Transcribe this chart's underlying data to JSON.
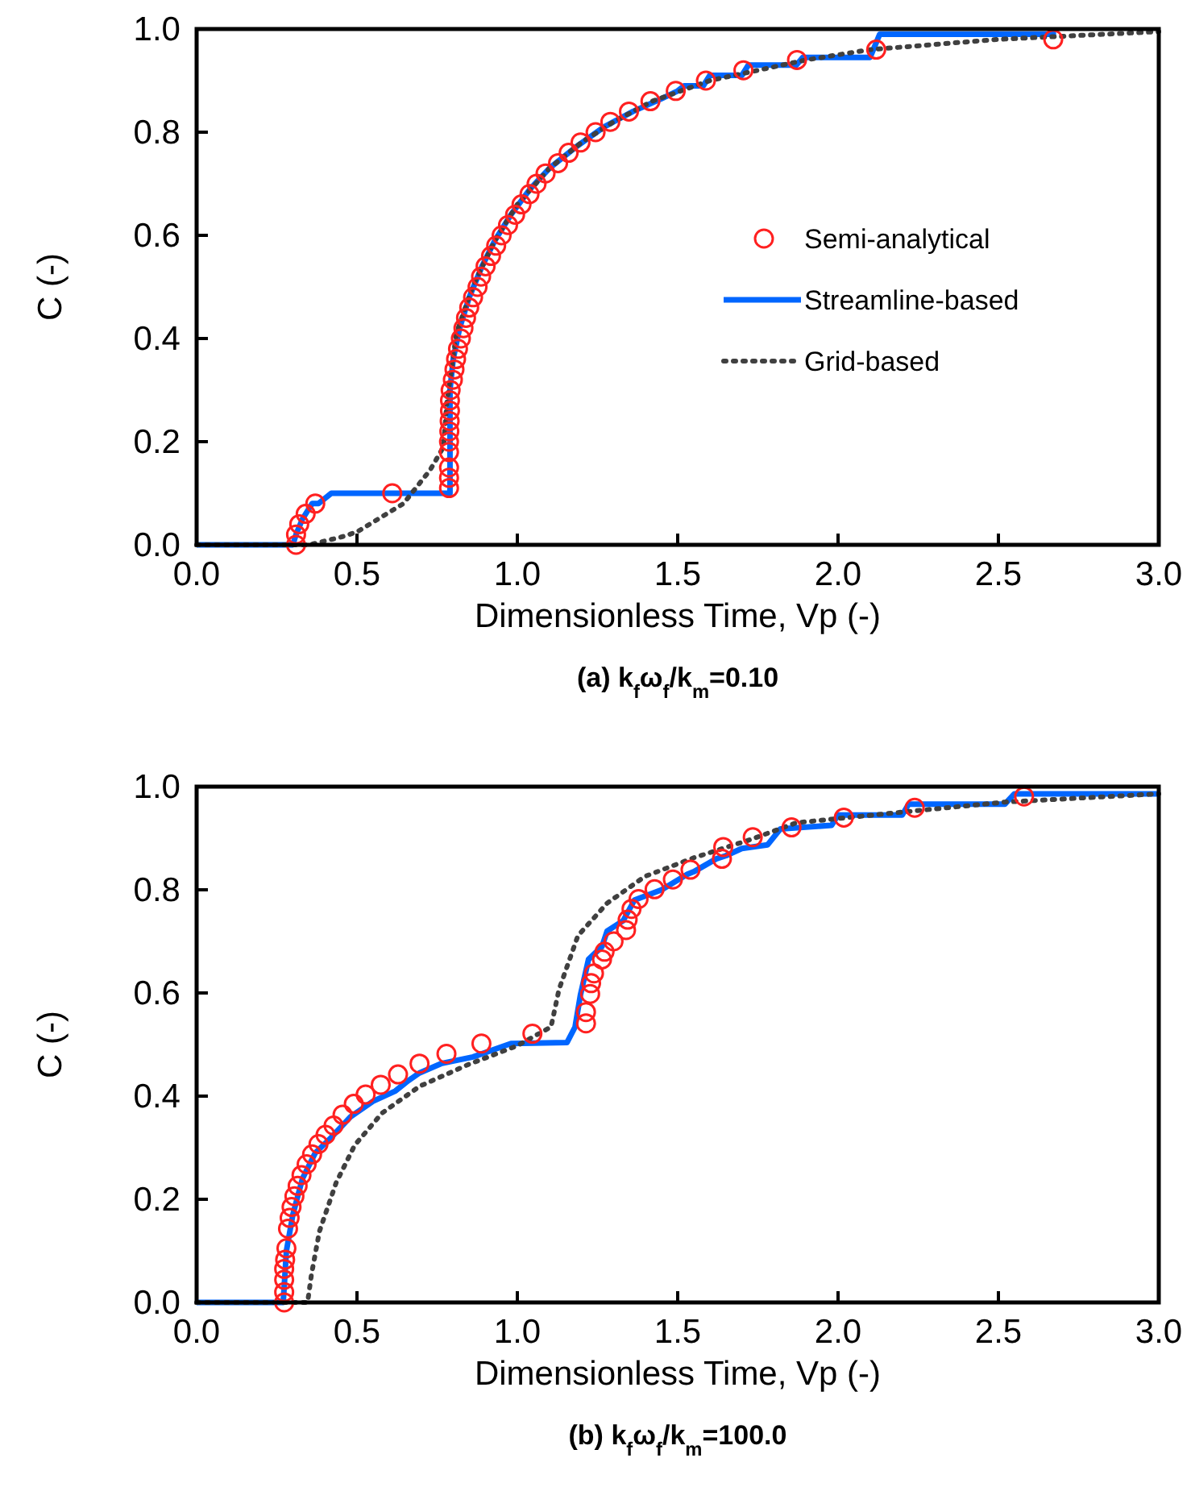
{
  "chart_data": [
    {
      "type": "line",
      "title": "(a) k$_{f}$ω$_{f}$/k$_{m}$=0.10",
      "xlabel": "Dimensionless Time, Vp (-)",
      "ylabel": "C (-)",
      "xlim": [
        0,
        3
      ],
      "ylim": [
        0,
        1
      ],
      "xticks": [
        {
          "value": 0,
          "label": "0.0"
        },
        {
          "value": 0.5,
          "label": "0.5"
        },
        {
          "value": 1,
          "label": "1.0"
        },
        {
          "value": 1.5,
          "label": "1.5"
        },
        {
          "value": 2,
          "label": "2.0"
        },
        {
          "value": 2.5,
          "label": "2.5"
        },
        {
          "value": 3,
          "label": "3.0"
        }
      ],
      "yticks": [
        {
          "value": 0,
          "label": "0.0"
        },
        {
          "value": 0.2,
          "label": "0.2"
        },
        {
          "value": 0.4,
          "label": "0.4"
        },
        {
          "value": 0.6,
          "label": "0.6"
        },
        {
          "value": 0.8,
          "label": "0.8"
        },
        {
          "value": 1,
          "label": "1.0"
        }
      ],
      "grid": false,
      "legend": "right",
      "series": [
        {
          "name": "Semi-analytical",
          "type": "scatter",
          "marker": "circle",
          "color": "#ff2020",
          "x": [
            0.31,
            0.31,
            0.32,
            0.34,
            0.37,
            0.61,
            0.787,
            0.787,
            0.787,
            0.787,
            0.787,
            0.788,
            0.789,
            0.79,
            0.79,
            0.792,
            0.799,
            0.804,
            0.809,
            0.815,
            0.824,
            0.832,
            0.84,
            0.85,
            0.862,
            0.876,
            0.887,
            0.901,
            0.918,
            0.934,
            0.951,
            0.971,
            0.993,
            1.013,
            1.038,
            1.06,
            1.088,
            1.127,
            1.16,
            1.197,
            1.244,
            1.29,
            1.348,
            1.415,
            1.494,
            1.588,
            1.705,
            1.872,
            2.119,
            2.671
          ],
          "values": [
            0.0,
            0.02,
            0.04,
            0.06,
            0.08,
            0.1,
            0.11,
            0.13,
            0.15,
            0.18,
            0.2,
            0.22,
            0.24,
            0.26,
            0.28,
            0.3,
            0.32,
            0.34,
            0.36,
            0.38,
            0.4,
            0.42,
            0.44,
            0.46,
            0.48,
            0.5,
            0.52,
            0.54,
            0.56,
            0.58,
            0.6,
            0.62,
            0.64,
            0.66,
            0.68,
            0.7,
            0.72,
            0.74,
            0.76,
            0.78,
            0.8,
            0.82,
            0.84,
            0.86,
            0.88,
            0.9,
            0.92,
            0.94,
            0.96,
            0.98
          ]
        },
        {
          "name": "Streamline-based",
          "line_style": "solid",
          "color": "#0066ff",
          "x": [
            0,
            0.3,
            0.31,
            0.33,
            0.36,
            0.38,
            0.42,
            0.79,
            0.79,
            0.79,
            0.8,
            0.82,
            0.85,
            0.89,
            0.93,
            0.98,
            1.04,
            1.1,
            1.18,
            1.27,
            1.36,
            1.45,
            1.5,
            1.52,
            1.58,
            1.6,
            1.7,
            1.72,
            1.87,
            1.89,
            2.1,
            2.13,
            2.68
          ],
          "values": [
            0,
            0,
            0.02,
            0.05,
            0.08,
            0.08,
            0.1,
            0.1,
            0.2,
            0.3,
            0.36,
            0.42,
            0.48,
            0.54,
            0.59,
            0.64,
            0.69,
            0.73,
            0.77,
            0.81,
            0.84,
            0.865,
            0.88,
            0.89,
            0.89,
            0.91,
            0.91,
            0.93,
            0.93,
            0.945,
            0.945,
            0.99,
            0.99
          ]
        },
        {
          "name": "Grid-based",
          "line_style": "dotted",
          "color": "#404040",
          "x": [
            0,
            0.35,
            0.45,
            0.5,
            0.645,
            0.728,
            0.77,
            0.78,
            0.81,
            0.86,
            0.93,
            1.0,
            1.1,
            1.2,
            1.3,
            1.42,
            1.6,
            1.9,
            2.1,
            2.5,
            3.0
          ],
          "values": [
            0,
            0,
            0.015,
            0.025,
            0.08,
            0.145,
            0.19,
            0.275,
            0.41,
            0.5,
            0.59,
            0.66,
            0.73,
            0.78,
            0.82,
            0.86,
            0.9,
            0.94,
            0.96,
            0.98,
            0.995
          ]
        }
      ]
    },
    {
      "type": "line",
      "title": "(b) k$_{f}$ω$_{f}$/k$_{m}$=100.0",
      "xlabel": "Dimensionless Time, Vp (-)",
      "ylabel": "C (-)",
      "xlim": [
        0,
        3
      ],
      "ylim": [
        0,
        1
      ],
      "xticks": [
        {
          "value": 0,
          "label": "0.0"
        },
        {
          "value": 0.5,
          "label": "0.5"
        },
        {
          "value": 1,
          "label": "1.0"
        },
        {
          "value": 1.5,
          "label": "1.5"
        },
        {
          "value": 2,
          "label": "2.0"
        },
        {
          "value": 2.5,
          "label": "2.5"
        },
        {
          "value": 3,
          "label": "3.0"
        }
      ],
      "yticks": [
        {
          "value": 0,
          "label": "0.0"
        },
        {
          "value": 0.2,
          "label": "0.2"
        },
        {
          "value": 0.4,
          "label": "0.4"
        },
        {
          "value": 0.6,
          "label": "0.6"
        },
        {
          "value": 0.8,
          "label": "0.8"
        },
        {
          "value": 1,
          "label": "1.0"
        }
      ],
      "grid": false,
      "legend": false,
      "series": [
        {
          "type": "scatter",
          "marker": "circle",
          "color": "#ff2020",
          "x": [
            0.273,
            0.273,
            0.273,
            0.273,
            0.276,
            0.28,
            0.285,
            0.29,
            0.296,
            0.305,
            0.315,
            0.327,
            0.343,
            0.36,
            0.38,
            0.402,
            0.427,
            0.455,
            0.49,
            0.527,
            0.574,
            0.628,
            0.695,
            0.779,
            0.888,
            1.047,
            1.214,
            1.214,
            1.227,
            1.23,
            1.239,
            1.264,
            1.272,
            1.3,
            1.339,
            1.344,
            1.356,
            1.378,
            1.428,
            1.485,
            1.54,
            1.638,
            1.642,
            1.734,
            1.855,
            2.018,
            2.239,
            2.58
          ],
          "values": [
            0.0,
            0.02,
            0.044,
            0.065,
            0.083,
            0.105,
            0.143,
            0.164,
            0.185,
            0.206,
            0.226,
            0.247,
            0.268,
            0.287,
            0.307,
            0.325,
            0.343,
            0.364,
            0.385,
            0.403,
            0.422,
            0.442,
            0.463,
            0.482,
            0.502,
            0.521,
            0.541,
            0.563,
            0.598,
            0.619,
            0.638,
            0.665,
            0.68,
            0.7,
            0.722,
            0.742,
            0.763,
            0.782,
            0.801,
            0.82,
            0.839,
            0.86,
            0.883,
            0.902,
            0.921,
            0.94,
            0.959,
            0.981
          ]
        },
        {
          "line_style": "solid",
          "color": "#0066ff",
          "x": [
            0,
            0.27,
            0.28,
            0.3,
            0.33,
            0.37,
            0.42,
            0.48,
            0.55,
            0.62,
            0.66,
            0.695,
            0.762,
            0.862,
            0.98,
            1.155,
            1.18,
            1.197,
            1.222,
            1.264,
            1.28,
            1.33,
            1.365,
            1.45,
            1.53,
            1.55,
            1.62,
            1.65,
            1.7,
            1.78,
            1.82,
            1.98,
            2.0,
            2.2,
            2.22,
            2.52,
            2.55,
            3.0
          ],
          "values": [
            0,
            0,
            0.1,
            0.17,
            0.24,
            0.29,
            0.32,
            0.36,
            0.39,
            0.41,
            0.43,
            0.445,
            0.463,
            0.476,
            0.502,
            0.504,
            0.534,
            0.597,
            0.665,
            0.69,
            0.72,
            0.74,
            0.78,
            0.8,
            0.83,
            0.835,
            0.86,
            0.866,
            0.88,
            0.887,
            0.918,
            0.925,
            0.945,
            0.945,
            0.966,
            0.966,
            0.986,
            0.986
          ]
        },
        {
          "line_style": "dotted",
          "color": "#404040",
          "x": [
            0,
            0.346,
            0.358,
            0.383,
            0.435,
            0.493,
            0.578,
            0.695,
            0.846,
            0.997,
            1.105,
            1.13,
            1.189,
            1.28,
            1.398,
            1.55,
            1.73,
            1.87,
            2.19,
            2.52,
            3.0
          ],
          "values": [
            0,
            0,
            0.054,
            0.138,
            0.232,
            0.305,
            0.367,
            0.419,
            0.461,
            0.497,
            0.534,
            0.607,
            0.711,
            0.774,
            0.826,
            0.862,
            0.898,
            0.93,
            0.95,
            0.97,
            0.986
          ]
        }
      ]
    }
  ]
}
